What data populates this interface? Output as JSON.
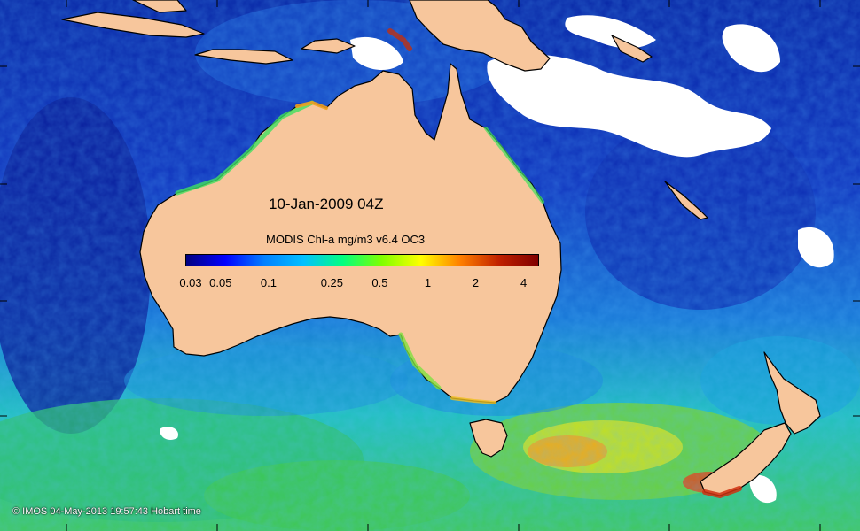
{
  "map": {
    "date_label": "10-Jan-2009 04Z",
    "credit": "© IMOS 04-May-2013 19:57:43 Hobart time",
    "colorbar": {
      "title": "MODIS Chl-a mg/m3 v6.4 OC3",
      "min": 0.03,
      "max": 5,
      "scale": "log",
      "ticks": [
        "0.03",
        "0.05",
        "0.1",
        "0.25",
        "0.5",
        "1",
        "2",
        "4"
      ]
    },
    "colors": {
      "land": "#f7c69c",
      "coastline": "#000000",
      "no_data": "#ffffff",
      "ramp": [
        "#000080",
        "#0000ff",
        "#0080ff",
        "#00c0ff",
        "#00ff80",
        "#80ff00",
        "#ffff00",
        "#ff8000",
        "#c02000",
        "#800000"
      ]
    }
  }
}
